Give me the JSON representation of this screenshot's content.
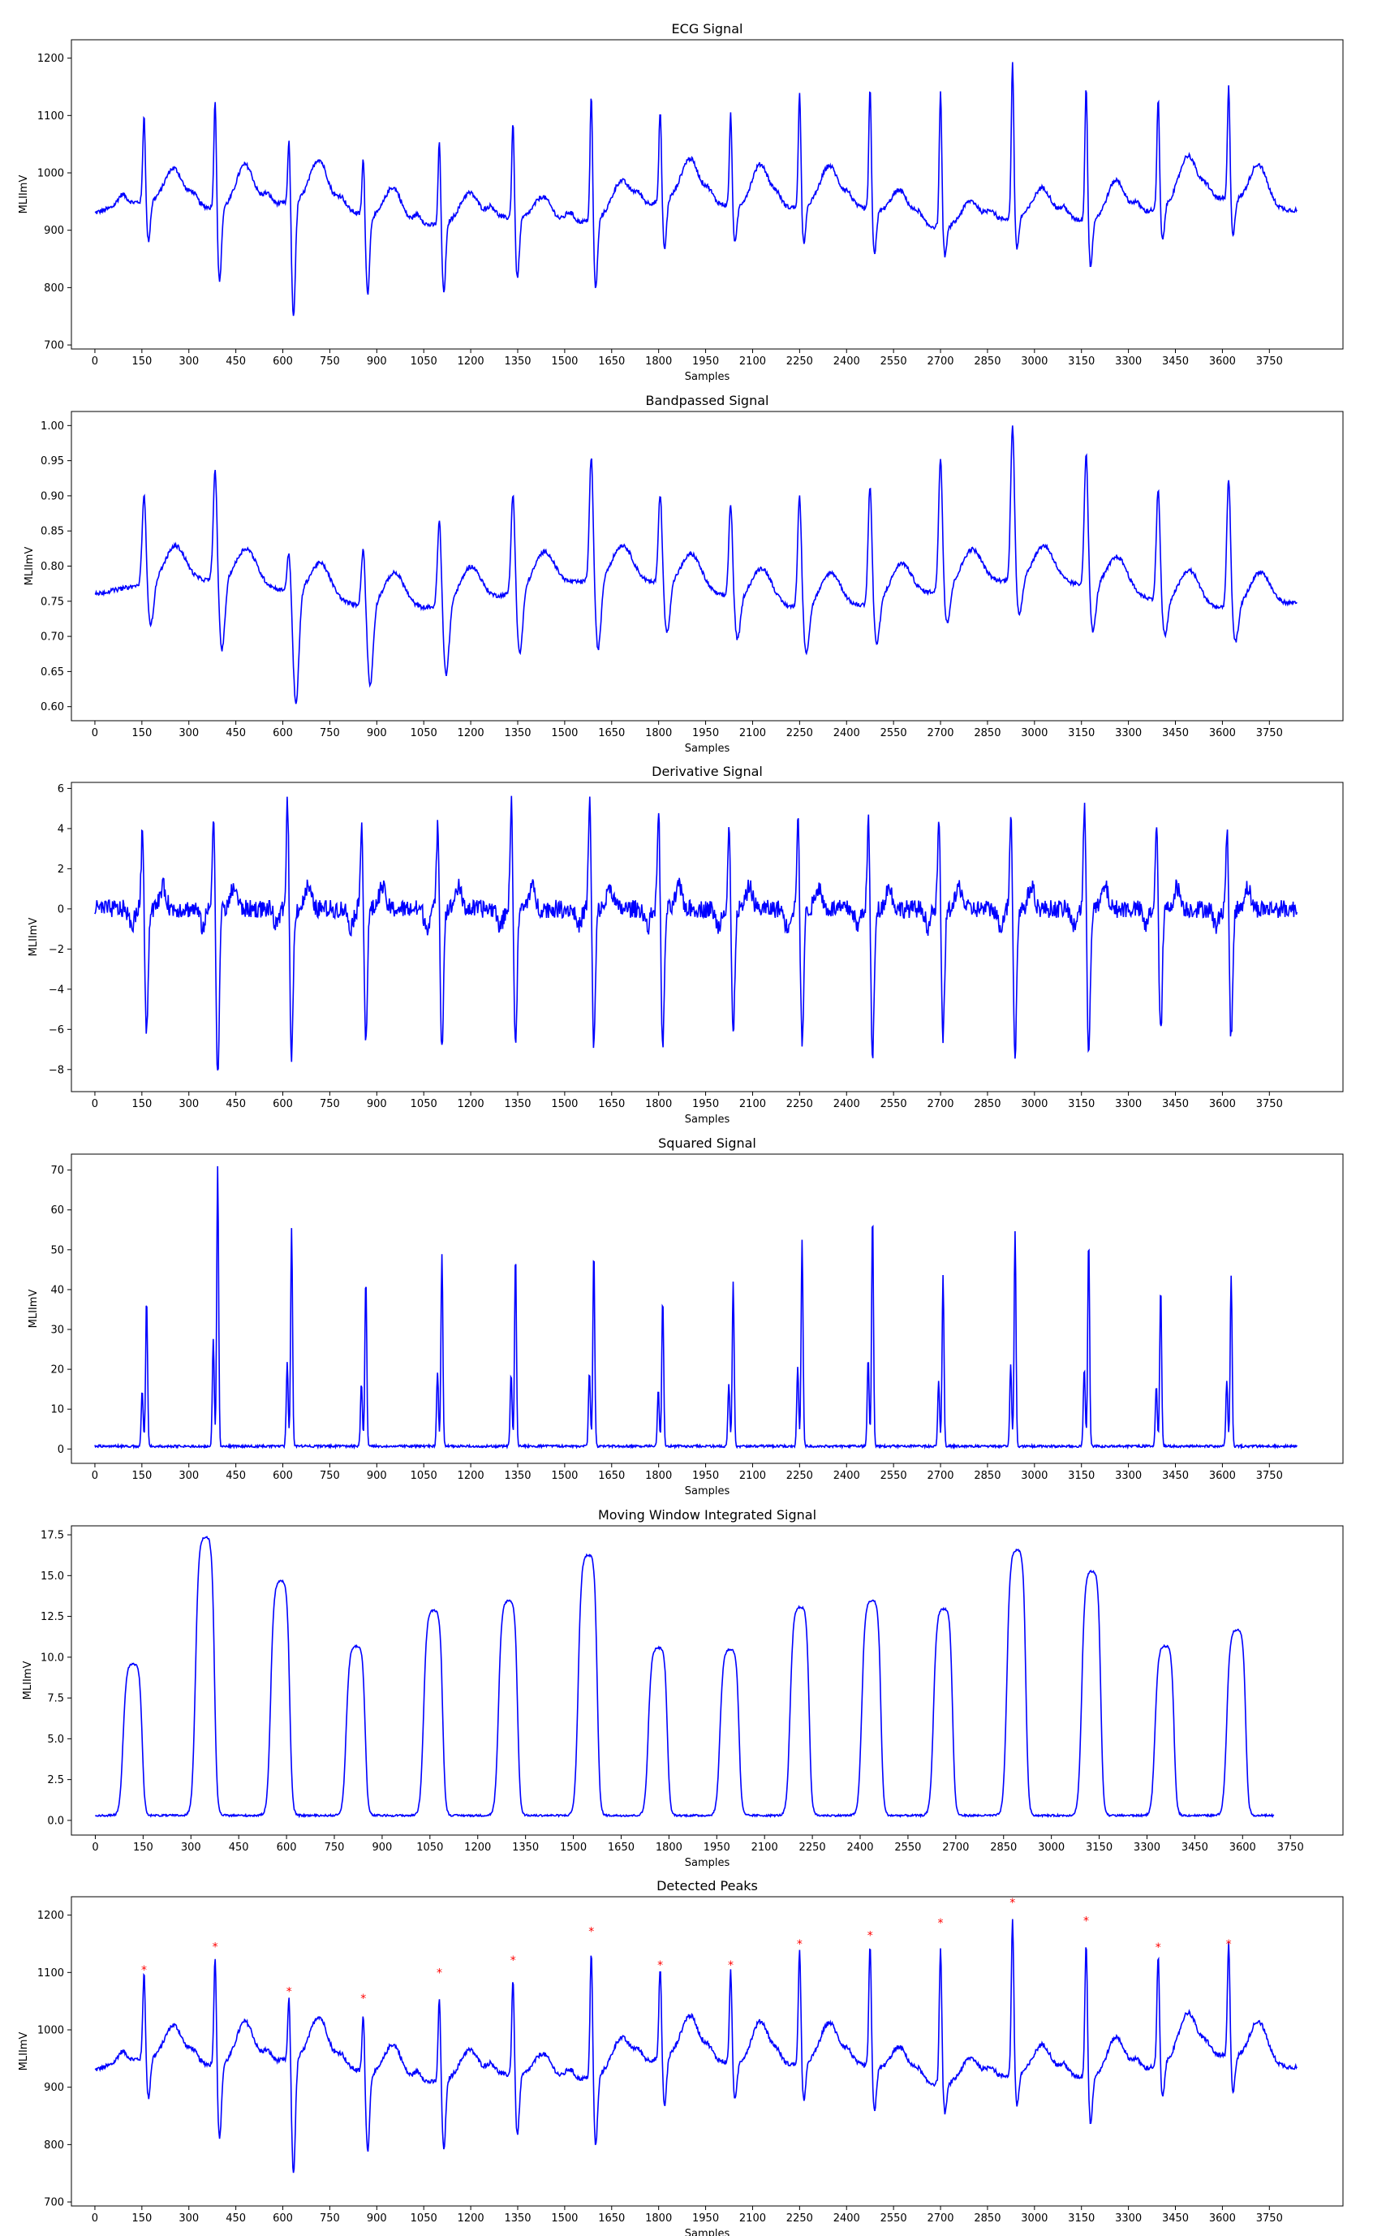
{
  "chart_data": [
    {
      "type": "line",
      "title": "ECG Signal",
      "xlabel": "Samples",
      "ylabel": "MLIImV",
      "xlim": [
        -75,
        3985
      ],
      "ylim": [
        693,
        1232
      ],
      "xticks": [
        0,
        150,
        300,
        450,
        600,
        750,
        900,
        1050,
        1200,
        1350,
        1500,
        1650,
        1800,
        1950,
        2100,
        2250,
        2400,
        2550,
        2700,
        2850,
        3000,
        3150,
        3300,
        3450,
        3600,
        3750
      ],
      "yticks": [
        700,
        800,
        900,
        1000,
        1100,
        1200
      ],
      "ytick_labels": [
        "700",
        "800",
        "900",
        "1000",
        "1100",
        "1200"
      ],
      "series": [
        {
          "color": "#0000ff",
          "kind": "ecg"
        }
      ]
    },
    {
      "type": "line",
      "title": "Bandpassed Signal",
      "xlabel": "Samples",
      "ylabel": "MLIImV",
      "xlim": [
        -75,
        3985
      ],
      "ylim": [
        0.58,
        1.02
      ],
      "xticks": [
        0,
        150,
        300,
        450,
        600,
        750,
        900,
        1050,
        1200,
        1350,
        1500,
        1650,
        1800,
        1950,
        2100,
        2250,
        2400,
        2550,
        2700,
        2850,
        3000,
        3150,
        3300,
        3450,
        3600,
        3750
      ],
      "yticks": [
        0.6,
        0.65,
        0.7,
        0.75,
        0.8,
        0.85,
        0.9,
        0.95,
        1.0
      ],
      "ytick_labels": [
        "0.60",
        "0.65",
        "0.70",
        "0.75",
        "0.80",
        "0.85",
        "0.90",
        "0.95",
        "1.00"
      ],
      "series": [
        {
          "color": "#0000ff",
          "kind": "bandpass"
        }
      ]
    },
    {
      "type": "line",
      "title": "Derivative Signal",
      "xlabel": "Samples",
      "ylabel": "MLIImV",
      "xlim": [
        -75,
        3985
      ],
      "ylim": [
        -9.1,
        6.3
      ],
      "xticks": [
        0,
        150,
        300,
        450,
        600,
        750,
        900,
        1050,
        1200,
        1350,
        1500,
        1650,
        1800,
        1950,
        2100,
        2250,
        2400,
        2550,
        2700,
        2850,
        3000,
        3150,
        3300,
        3450,
        3600,
        3750
      ],
      "yticks": [
        -8,
        -6,
        -4,
        -2,
        0,
        2,
        4,
        6
      ],
      "ytick_labels": [
        "−8",
        "−6",
        "−4",
        "−2",
        "0",
        "2",
        "4",
        "6"
      ],
      "series": [
        {
          "color": "#0000ff",
          "kind": "derivative"
        }
      ]
    },
    {
      "type": "line",
      "title": "Squared Signal",
      "xlabel": "Samples",
      "ylabel": "MLIImV",
      "xlim": [
        -75,
        3985
      ],
      "ylim": [
        -3.6,
        74
      ],
      "xticks": [
        0,
        150,
        300,
        450,
        600,
        750,
        900,
        1050,
        1200,
        1350,
        1500,
        1650,
        1800,
        1950,
        2100,
        2250,
        2400,
        2550,
        2700,
        2850,
        3000,
        3150,
        3300,
        3450,
        3600,
        3750
      ],
      "yticks": [
        0,
        10,
        20,
        30,
        40,
        50,
        60,
        70
      ],
      "ytick_labels": [
        "0",
        "10",
        "20",
        "30",
        "40",
        "50",
        "60",
        "70"
      ],
      "series": [
        {
          "color": "#0000ff",
          "kind": "squared"
        }
      ]
    },
    {
      "type": "line",
      "title": "Moving Window Integrated Signal",
      "xlabel": "Samples",
      "ylabel": "MLIImV",
      "xlim": [
        -75,
        3915
      ],
      "ylim": [
        -0.9,
        18.05
      ],
      "xticks": [
        0,
        150,
        300,
        450,
        600,
        750,
        900,
        1050,
        1200,
        1350,
        1500,
        1650,
        1800,
        1950,
        2100,
        2250,
        2400,
        2550,
        2700,
        2850,
        3000,
        3150,
        3300,
        3450,
        3600,
        3750
      ],
      "yticks": [
        0.0,
        2.5,
        5.0,
        7.5,
        10.0,
        12.5,
        15.0,
        17.5
      ],
      "ytick_labels": [
        "0.0",
        "2.5",
        "5.0",
        "7.5",
        "10.0",
        "12.5",
        "15.0",
        "17.5"
      ],
      "series": [
        {
          "color": "#0000ff",
          "kind": "mwi"
        }
      ]
    },
    {
      "type": "line",
      "title": "Detected Peaks",
      "xlabel": "Samples",
      "ylabel": "MLIImV",
      "xlim": [
        -75,
        3985
      ],
      "ylim": [
        693,
        1232
      ],
      "xticks": [
        0,
        150,
        300,
        450,
        600,
        750,
        900,
        1050,
        1200,
        1350,
        1500,
        1650,
        1800,
        1950,
        2100,
        2250,
        2400,
        2550,
        2700,
        2850,
        3000,
        3150,
        3300,
        3450,
        3600,
        3750
      ],
      "yticks": [
        700,
        800,
        900,
        1000,
        1100,
        1200
      ],
      "ytick_labels": [
        "700",
        "800",
        "900",
        "1000",
        "1100",
        "1200"
      ],
      "series": [
        {
          "color": "#0000ff",
          "kind": "ecg"
        }
      ],
      "peaks": {
        "color": "#ff0000",
        "x": [
          157,
          384,
          620,
          857,
          1100,
          1335,
          1585,
          1805,
          2030,
          2250,
          2475,
          2700,
          2930,
          3165,
          3395,
          3620
        ],
        "y": [
          1105,
          1145,
          1067,
          1055,
          1100,
          1122,
          1172,
          1113,
          1113,
          1150,
          1165,
          1187,
          1222,
          1190,
          1144,
          1150
        ]
      }
    }
  ],
  "beats": {
    "x": [
      157,
      384,
      620,
      857,
      1100,
      1335,
      1585,
      1805,
      2030,
      2250,
      2475,
      2700,
      2930,
      3165,
      3395,
      3620
    ],
    "ecg_r": [
      1105,
      1145,
      1067,
      1055,
      1100,
      1122,
      1172,
      1113,
      1113,
      1150,
      1165,
      1187,
      1222,
      1190,
      1144,
      1150
    ],
    "ecg_s": [
      840,
      780,
      710,
      775,
      790,
      805,
      790,
      825,
      845,
      845,
      835,
      860,
      855,
      830,
      850,
      850
    ],
    "bp_r": [
      0.91,
      0.94,
      0.84,
      0.865,
      0.905,
      0.925,
      0.96,
      0.91,
      0.915,
      0.94,
      0.95,
      0.97,
      1.0,
      0.97,
      0.94,
      0.965
    ],
    "bp_s": [
      0.7,
      0.66,
      0.598,
      0.645,
      0.66,
      0.67,
      0.66,
      0.69,
      0.7,
      0.695,
      0.7,
      0.71,
      0.71,
      0.695,
      0.71,
      0.71
    ],
    "d_max": [
      4.0,
      5.1,
      5.6,
      4.6,
      4.5,
      5.5,
      5.7,
      5.2,
      4.3,
      4.6,
      4.6,
      4.6,
      5.1,
      5.2,
      4.2,
      4.1
    ],
    "d_min": [
      -6.1,
      -8.4,
      -7.4,
      -6.5,
      -6.9,
      -6.9,
      -6.9,
      -7.0,
      -6.4,
      -6.7,
      -7.6,
      -6.5,
      -7.4,
      -7.0,
      -6.3,
      -6.5
    ],
    "sq_pk": [
      37,
      70,
      55,
      42,
      48,
      48,
      49,
      37,
      41,
      52,
      58,
      43,
      54,
      52,
      40,
      43
    ],
    "mwi_pk": [
      9.3,
      17.1,
      14.4,
      10.4,
      12.6,
      13.2,
      16.0,
      10.3,
      10.2,
      12.8,
      13.2,
      12.7,
      16.3,
      15.0,
      10.4,
      11.4
    ]
  }
}
